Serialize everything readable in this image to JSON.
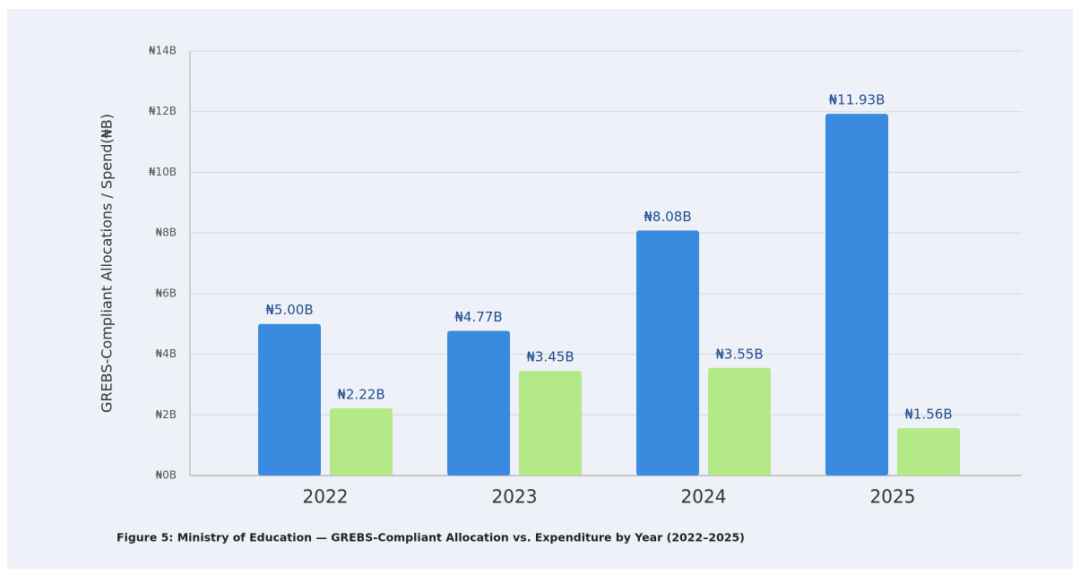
{
  "chart_data": {
    "type": "bar",
    "caption": "Figure 5: Ministry of Education — GREBS-Compliant Allocation vs. Expenditure by Year (2022–2025)",
    "y_label": "GREBS-Compliant Allocations / Spend(₦B)",
    "categories": [
      "2022",
      "2023",
      "2024",
      "2025"
    ],
    "series": [
      {
        "color": "#3a8ae0",
        "values": [
          5.0,
          4.77,
          8.08,
          11.93
        ],
        "value_labels": [
          "₦5.00B",
          "₦4.77B",
          "₦8.08B",
          "₦11.93B"
        ]
      },
      {
        "color": "#b3e986",
        "values": [
          2.22,
          3.45,
          3.55,
          1.56
        ],
        "value_labels": [
          "₦2.22B",
          "₦3.45B",
          "₦3.55B",
          "₦1.56B"
        ]
      }
    ],
    "ylim": [
      0,
      14
    ],
    "yticks": [
      {
        "value": 0,
        "label": "₦0B"
      },
      {
        "value": 2,
        "label": "₦2B"
      },
      {
        "value": 4,
        "label": "₦4B"
      },
      {
        "value": 6,
        "label": "₦6B"
      },
      {
        "value": 8,
        "label": "₦8B"
      },
      {
        "value": 10,
        "label": "₦10B"
      },
      {
        "value": 12,
        "label": "₦12B"
      },
      {
        "value": 14,
        "label": "₦14B"
      }
    ],
    "grid": true
  }
}
